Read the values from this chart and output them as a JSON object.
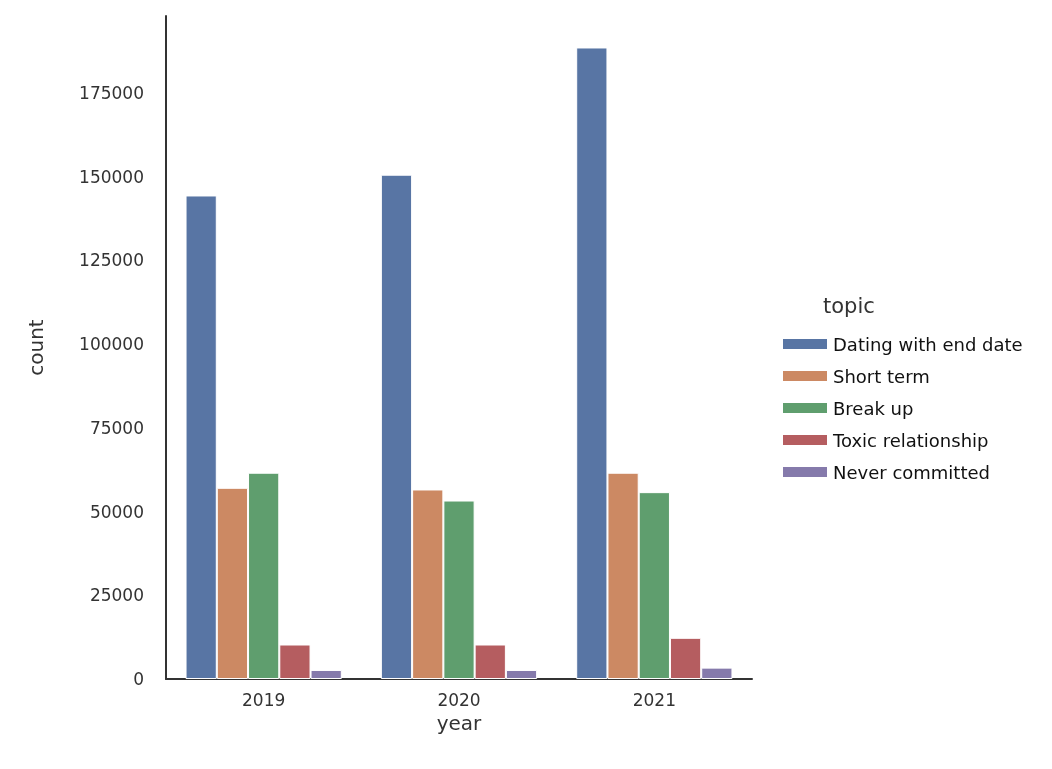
{
  "chart_data": {
    "type": "bar",
    "xlabel": "year",
    "ylabel": "count",
    "legend_title": "topic",
    "categories": [
      "2019",
      "2020",
      "2021"
    ],
    "series": [
      {
        "name": "Dating with end date",
        "color": "#5875a4",
        "values": [
          144400,
          150600,
          188600
        ]
      },
      {
        "name": "Short term",
        "color": "#cc8963",
        "values": [
          57100,
          56600,
          61600
        ]
      },
      {
        "name": "Break up",
        "color": "#5f9e6e",
        "values": [
          61600,
          53300,
          55800
        ]
      },
      {
        "name": "Toxic relationship",
        "color": "#b55d60",
        "values": [
          10300,
          10300,
          12300
        ]
      },
      {
        "name": "Never committed",
        "color": "#857aab",
        "values": [
          2700,
          2700,
          3400
        ]
      }
    ],
    "ylim": [
      0,
      198000
    ],
    "yticks": [
      0,
      25000,
      50000,
      75000,
      100000,
      125000,
      150000,
      175000
    ],
    "grid": false,
    "legend": "right"
  }
}
